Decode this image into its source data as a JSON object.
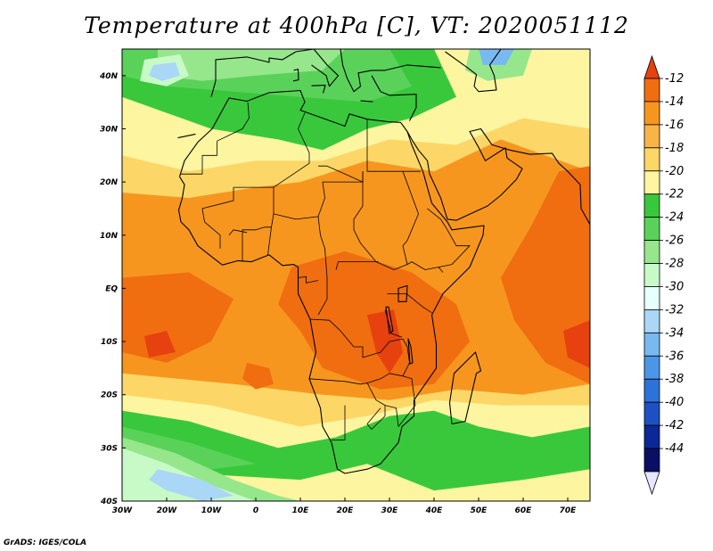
{
  "title": "Temperature at 400hPa [C], VT: 2020051112",
  "credit": "GrADS: IGES/COLA",
  "map": {
    "projection": "latlon",
    "lon_range": [
      -30,
      75
    ],
    "lat_range": [
      -40,
      45
    ],
    "lon_ticks": [
      {
        "value": -30,
        "label": "30W"
      },
      {
        "value": -20,
        "label": "20W"
      },
      {
        "value": -10,
        "label": "10W"
      },
      {
        "value": 0,
        "label": "0"
      },
      {
        "value": 10,
        "label": "10E"
      },
      {
        "value": 20,
        "label": "20E"
      },
      {
        "value": 30,
        "label": "30E"
      },
      {
        "value": 40,
        "label": "40E"
      },
      {
        "value": 50,
        "label": "50E"
      },
      {
        "value": 60,
        "label": "60E"
      },
      {
        "value": 70,
        "label": "70E"
      }
    ],
    "lat_ticks": [
      {
        "value": 40,
        "label": "40N"
      },
      {
        "value": 30,
        "label": "30N"
      },
      {
        "value": 20,
        "label": "20N"
      },
      {
        "value": 10,
        "label": "10N"
      },
      {
        "value": 0,
        "label": "EQ"
      },
      {
        "value": -10,
        "label": "10S"
      },
      {
        "value": -20,
        "label": "20S"
      },
      {
        "value": -30,
        "label": "30S"
      },
      {
        "value": -40,
        "label": "40S"
      }
    ]
  },
  "colorbar": {
    "levels": [
      "-12",
      "-14",
      "-16",
      "-18",
      "-20",
      "-22",
      "-24",
      "-26",
      "-28",
      "-30",
      "-32",
      "-34",
      "-36",
      "-38",
      "-40",
      "-42",
      "-44"
    ],
    "colors": [
      "#e6410f",
      "#f06e0f",
      "#f7961e",
      "#fab446",
      "#fcd768",
      "#fdf5a0",
      "#39c83c",
      "#5ad25a",
      "#96e68c",
      "#c8fac8",
      "#e6ffff",
      "#aad7f5",
      "#78b9f0",
      "#4b96e6",
      "#2d73d7",
      "#1e50c3",
      "#0a2896",
      "#0a0f64",
      "#e6e6ff"
    ]
  },
  "fields": {
    "background_color": "#f7961e",
    "regions": [
      {
        "level": "-16",
        "color": "#f7961e",
        "pts": [
          [
            -30,
            45
          ],
          [
            75,
            45
          ],
          [
            75,
            -40
          ],
          [
            -30,
            -40
          ]
        ]
      },
      {
        "level": "-20",
        "color": "#fcd768",
        "pts": [
          [
            -30,
            40
          ],
          [
            75,
            40
          ],
          [
            75,
            22
          ],
          [
            55,
            28
          ],
          [
            40,
            22
          ],
          [
            25,
            24
          ],
          [
            10,
            20
          ],
          [
            0,
            19
          ],
          [
            -15,
            17
          ],
          [
            -30,
            18
          ]
        ]
      },
      {
        "level": "-22",
        "color": "#fdf5a0",
        "pts": [
          [
            -30,
            45
          ],
          [
            75,
            45
          ],
          [
            75,
            30
          ],
          [
            60,
            32
          ],
          [
            45,
            27
          ],
          [
            30,
            28
          ],
          [
            15,
            24
          ],
          [
            0,
            24
          ],
          [
            -15,
            22
          ],
          [
            -30,
            25
          ]
        ]
      },
      {
        "level": "-24",
        "color": "#39c83c",
        "pts": [
          [
            -30,
            45
          ],
          [
            40,
            45
          ],
          [
            45,
            36
          ],
          [
            35,
            32
          ],
          [
            25,
            30
          ],
          [
            15,
            26
          ],
          [
            5,
            28
          ],
          [
            -10,
            30
          ],
          [
            -20,
            33
          ],
          [
            -30,
            36
          ]
        ]
      },
      {
        "level": "-26",
        "color": "#5ad25a",
        "pts": [
          [
            -30,
            45
          ],
          [
            30,
            45
          ],
          [
            35,
            38
          ],
          [
            25,
            35
          ],
          [
            10,
            36
          ],
          [
            -5,
            37
          ],
          [
            -20,
            38
          ],
          [
            -30,
            40
          ]
        ]
      },
      {
        "level": "-28",
        "color": "#96e68c",
        "pts": [
          [
            -22,
            45
          ],
          [
            20,
            45
          ],
          [
            15,
            41
          ],
          [
            0,
            40
          ],
          [
            -12,
            39
          ],
          [
            -22,
            40
          ]
        ]
      },
      {
        "level": "-30",
        "color": "#c8fac8",
        "pts": [
          [
            -25,
            43
          ],
          [
            -17,
            44
          ],
          [
            -15,
            40
          ],
          [
            -20,
            38
          ],
          [
            -26,
            39
          ]
        ]
      },
      {
        "level": "-32",
        "color": "#aad7f5",
        "pts": [
          [
            -23,
            42
          ],
          [
            -18,
            42.5
          ],
          [
            -17,
            40
          ],
          [
            -21,
            39
          ],
          [
            -24,
            40
          ]
        ]
      },
      {
        "level": "-28",
        "color": "#96e68c",
        "pts": [
          [
            48,
            45
          ],
          [
            62,
            45
          ],
          [
            60,
            40
          ],
          [
            52,
            39
          ],
          [
            47,
            41
          ]
        ]
      },
      {
        "level": "-34",
        "color": "#78b9f0",
        "pts": [
          [
            50,
            45
          ],
          [
            58,
            45
          ],
          [
            56,
            42
          ],
          [
            51,
            42
          ]
        ]
      },
      {
        "level": "-20",
        "color": "#fcd768",
        "pts": [
          [
            -30,
            -16
          ],
          [
            -5,
            -18
          ],
          [
            15,
            -20
          ],
          [
            30,
            -21
          ],
          [
            45,
            -19
          ],
          [
            60,
            -20
          ],
          [
            75,
            -18
          ],
          [
            75,
            -40
          ],
          [
            -30,
            -40
          ]
        ]
      },
      {
        "level": "-22",
        "color": "#fdf5a0",
        "pts": [
          [
            -30,
            -20
          ],
          [
            -10,
            -22
          ],
          [
            10,
            -26
          ],
          [
            25,
            -24
          ],
          [
            40,
            -21
          ],
          [
            55,
            -22
          ],
          [
            75,
            -22
          ],
          [
            75,
            -40
          ],
          [
            -30,
            -40
          ]
        ]
      },
      {
        "level": "-24",
        "color": "#39c83c",
        "pts": [
          [
            -30,
            -23
          ],
          [
            -15,
            -25
          ],
          [
            5,
            -30
          ],
          [
            18,
            -28
          ],
          [
            30,
            -24
          ],
          [
            40,
            -23
          ],
          [
            50,
            -26
          ],
          [
            62,
            -28
          ],
          [
            75,
            -26
          ],
          [
            75,
            -34
          ],
          [
            60,
            -36
          ],
          [
            40,
            -38
          ],
          [
            25,
            -33
          ],
          [
            10,
            -36
          ],
          [
            -10,
            -35
          ],
          [
            -30,
            -33
          ]
        ]
      },
      {
        "level": "-26",
        "color": "#5ad25a",
        "pts": [
          [
            -30,
            -26
          ],
          [
            -15,
            -29
          ],
          [
            0,
            -33
          ],
          [
            -10,
            -34
          ],
          [
            -30,
            -31
          ]
        ]
      },
      {
        "level": "-28",
        "color": "#96e68c",
        "pts": [
          [
            -30,
            -28
          ],
          [
            -18,
            -31
          ],
          [
            -5,
            -36
          ],
          [
            5,
            -39
          ],
          [
            10,
            -40
          ],
          [
            -30,
            -40
          ]
        ]
      },
      {
        "level": "-30",
        "color": "#c8fac8",
        "pts": [
          [
            -30,
            -30
          ],
          [
            -20,
            -33
          ],
          [
            -10,
            -37
          ],
          [
            0,
            -40
          ],
          [
            -30,
            -40
          ]
        ]
      },
      {
        "level": "-32",
        "color": "#aad7f5",
        "pts": [
          [
            -22,
            -34
          ],
          [
            -12,
            -36
          ],
          [
            -5,
            -39
          ],
          [
            -12,
            -40
          ],
          [
            -20,
            -38
          ],
          [
            -24,
            -36
          ]
        ]
      },
      {
        "level": "-14",
        "color": "#f06e0f",
        "pts": [
          [
            -30,
            2
          ],
          [
            -15,
            3
          ],
          [
            -5,
            -2
          ],
          [
            -10,
            -10
          ],
          [
            -20,
            -14
          ],
          [
            -30,
            -12
          ]
        ]
      },
      {
        "level": "-14",
        "color": "#f06e0f",
        "pts": [
          [
            8,
            4
          ],
          [
            20,
            7
          ],
          [
            35,
            3
          ],
          [
            45,
            -3
          ],
          [
            48,
            -10
          ],
          [
            40,
            -18
          ],
          [
            28,
            -19
          ],
          [
            15,
            -15
          ],
          [
            10,
            -8
          ],
          [
            5,
            -3
          ]
        ]
      },
      {
        "level": "-14",
        "color": "#f06e0f",
        "pts": [
          [
            55,
            2
          ],
          [
            62,
            12
          ],
          [
            68,
            22
          ],
          [
            75,
            23
          ],
          [
            75,
            -18
          ],
          [
            65,
            -14
          ],
          [
            58,
            -6
          ]
        ]
      },
      {
        "level": "-14",
        "color": "#f06e0f",
        "pts": [
          [
            -2,
            -14
          ],
          [
            3,
            -15
          ],
          [
            4,
            -18
          ],
          [
            0,
            -19
          ],
          [
            -3,
            -17
          ]
        ]
      },
      {
        "level": "-12",
        "color": "#e6410f",
        "pts": [
          [
            -25,
            -9
          ],
          [
            -20,
            -8
          ],
          [
            -18,
            -12
          ],
          [
            -24,
            -13
          ]
        ]
      },
      {
        "level": "-12",
        "color": "#e6410f",
        "pts": [
          [
            25,
            -5
          ],
          [
            31,
            -4
          ],
          [
            33,
            -12
          ],
          [
            30,
            -16
          ],
          [
            27,
            -12
          ]
        ]
      },
      {
        "level": "-12",
        "color": "#e6410f",
        "pts": [
          [
            69,
            -8
          ],
          [
            75,
            -6
          ],
          [
            75,
            -15
          ],
          [
            70,
            -13
          ]
        ]
      }
    ]
  }
}
